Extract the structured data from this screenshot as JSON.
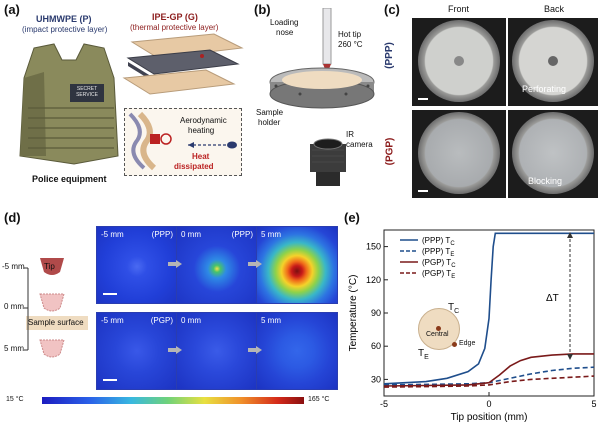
{
  "panels": {
    "a": {
      "label": "(a)",
      "layer_p_title": "UHMWPE (P)",
      "layer_p_sub": "(impact protective layer)",
      "layer_g_title": "IPE-GP (G)",
      "layer_g_sub": "(thermal protective layer)",
      "vest_patch": "SECRET SERVICE",
      "inset_top": "Aerodynamic",
      "inset_top2": "heating",
      "inset_heat": "Heat",
      "inset_heat2": "dissipated",
      "caption": "Police equipment"
    },
    "b": {
      "label": "(b)",
      "loading": "Loading",
      "nose": "nose",
      "hot_tip": "Hot tip",
      "temp": "260 °C",
      "sample": "Sample",
      "holder": "holder",
      "ir": "IR",
      "camera": "camera"
    },
    "c": {
      "label": "(c)",
      "front": "Front",
      "back": "Back",
      "ppp": "(PPP)",
      "pgp": "(PGP)",
      "perforating": "Perforating",
      "blocking": "Blocking"
    },
    "d": {
      "label": "(d)",
      "tip": "Tip",
      "m5": "-5 mm",
      "zero": "0 mm",
      "p5": "5 mm",
      "sample_surface": "Sample surface",
      "images": [
        {
          "pos": "-5 mm",
          "tag": "(PPP)"
        },
        {
          "pos": "0 mm",
          "tag": "(PPP)"
        },
        {
          "pos": "5 mm",
          "tag": ""
        },
        {
          "pos": "-5 mm",
          "tag": "(PGP)"
        },
        {
          "pos": "0 mm",
          "tag": ""
        },
        {
          "pos": "5 mm",
          "tag": ""
        }
      ],
      "scale_min": "15 °C",
      "scale_max": "165 °C"
    },
    "e": {
      "label": "(e)",
      "central": "Central",
      "edge": "Edge",
      "tc": "T",
      "tc_sub": "C",
      "te": "T",
      "te_sub": "E",
      "delta": "ΔT"
    }
  },
  "chart_data": {
    "type": "line",
    "xlabel": "Tip position (mm)",
    "ylabel": "Temperature (°C)",
    "xlim": [
      -5,
      5
    ],
    "ylim": [
      15,
      165
    ],
    "xticks": [
      -5,
      0,
      5
    ],
    "yticks": [
      30,
      60,
      90,
      120,
      150
    ],
    "legend_position": "top-right",
    "series": [
      {
        "name": "(PPP) T_C",
        "label": "(PPP) T",
        "sub": "C",
        "color": "#1f4e8c",
        "dash": "solid",
        "x": [
          -5,
          -4,
          -3,
          -2,
          -1,
          -0.5,
          -0.2,
          0,
          0.1,
          0.2,
          0.3,
          5
        ],
        "y": [
          26,
          27,
          28,
          31,
          37,
          44,
          58,
          85,
          120,
          150,
          162,
          162
        ]
      },
      {
        "name": "(PPP) T_E",
        "label": "(PPP) T",
        "sub": "E",
        "color": "#1f4e8c",
        "dash": "dashed",
        "x": [
          -5,
          -3,
          -1,
          0,
          1,
          2,
          3,
          4,
          5
        ],
        "y": [
          25,
          25.5,
          26,
          27,
          31,
          35,
          38,
          40,
          41
        ]
      },
      {
        "name": "(PGP) T_C",
        "label": "(PGP) T",
        "sub": "C",
        "color": "#7a1a1a",
        "dash": "solid",
        "x": [
          -5,
          -3,
          -1,
          0,
          0.5,
          1,
          1.5,
          2,
          3,
          4,
          5
        ],
        "y": [
          24,
          24.5,
          25,
          27,
          34,
          42,
          47,
          50,
          52,
          53,
          53
        ]
      },
      {
        "name": "(PGP) T_E",
        "label": "(PGP) T",
        "sub": "E",
        "color": "#7a1a1a",
        "dash": "dashed",
        "x": [
          -5,
          -3,
          -1,
          0,
          1,
          2,
          3,
          4,
          5
        ],
        "y": [
          23,
          23.5,
          24,
          25,
          28,
          30,
          31,
          32,
          33
        ]
      }
    ]
  }
}
